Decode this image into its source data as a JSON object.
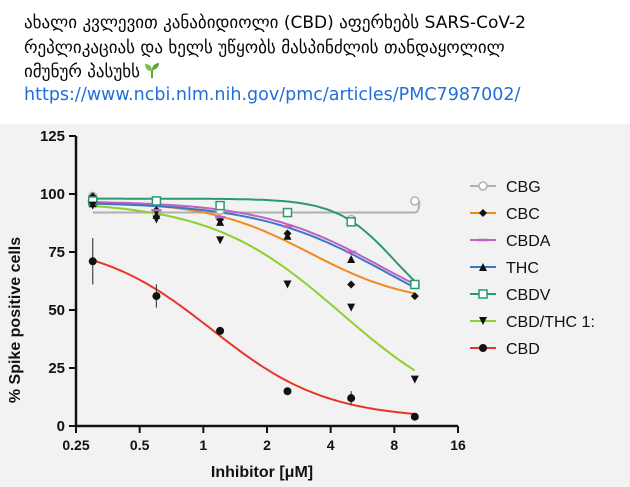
{
  "post": {
    "lines": [
      "ახალი კვლევით კანაბიდიოლი (CBD) აფერხებს SARS-CoV-2",
      "რეპლიკაციას და ხელს უწყობს მასპინძლის თანდაყოლილ",
      "იმუნურ პასუხს"
    ],
    "emoji": "seedling",
    "link": "https://www.ncbi.nlm.nih.gov/pmc/articles/PMC7987002/"
  },
  "chart_data": {
    "type": "scatter",
    "xlabel": "Inhibitor [μM]",
    "ylabel": "% Spike positive cells",
    "x_scale": "log2",
    "xlim": [
      0.25,
      16
    ],
    "ylim": [
      0,
      125
    ],
    "x_ticks": [
      "0.25",
      "0.5",
      "1",
      "2",
      "4",
      "8",
      "16"
    ],
    "y_ticks": [
      "0",
      "25",
      "50",
      "75",
      "100",
      "125"
    ],
    "legend_position": "right",
    "series": [
      {
        "name": "CBG",
        "color": "#b0b0b0",
        "marker": "circle-open",
        "x": [
          0.3,
          0.6,
          1.2,
          2.5,
          5,
          10
        ],
        "y": [
          99,
          97,
          93,
          92,
          89,
          97
        ],
        "fit": [
          0.3,
          92,
          10,
          92,
          10.5,
          97
        ]
      },
      {
        "name": "CBC",
        "color": "#f08a1c",
        "marker": "diamond",
        "x": [
          0.3,
          0.6,
          1.2,
          2.5,
          5,
          10
        ],
        "y": [
          99,
          93,
          89,
          83,
          61,
          56
        ],
        "fit": [
          97,
          52,
          3.2,
          1.8
        ]
      },
      {
        "name": "CBDA",
        "color": "#c060c0",
        "marker": "dash",
        "x": [
          0.3,
          0.6,
          1.2,
          2.5,
          5,
          10
        ],
        "y": [
          97,
          93,
          90,
          86,
          75,
          61
        ],
        "fit": [
          97,
          40,
          7,
          1.5
        ]
      },
      {
        "name": "THC",
        "color": "#3a78c8",
        "marker": "triangle-up",
        "x": [
          0.3,
          0.6,
          1.2,
          2.5,
          5,
          10
        ],
        "y": [
          96,
          91,
          88,
          82,
          72,
          61
        ],
        "fit": [
          96.5,
          35,
          7.5,
          1.4
        ]
      },
      {
        "name": "CBDV",
        "color": "#2a9a6a",
        "marker": "square-open",
        "x": [
          0.3,
          0.6,
          1.2,
          2.5,
          5,
          10
        ],
        "y": [
          97,
          97,
          95,
          92,
          88,
          61
        ],
        "fit": [
          98,
          45,
          8,
          3.2
        ]
      },
      {
        "name": "CBD/THC 1:",
        "color": "#8ccf2e",
        "marker": "triangle-down",
        "x": [
          0.3,
          0.6,
          1.2,
          2.5,
          5,
          10
        ],
        "y": [
          95,
          89,
          80,
          61,
          51,
          20
        ],
        "fit": [
          97,
          0,
          4.5,
          1.4
        ]
      },
      {
        "name": "CBD",
        "color": "#e8352a",
        "marker": "circle",
        "x": [
          0.3,
          0.6,
          1.2,
          2.5,
          5,
          10
        ],
        "y": [
          71,
          56,
          41,
          15,
          12,
          4
        ],
        "fit": [
          80,
          3,
          1.1,
          1.6
        ]
      }
    ]
  }
}
